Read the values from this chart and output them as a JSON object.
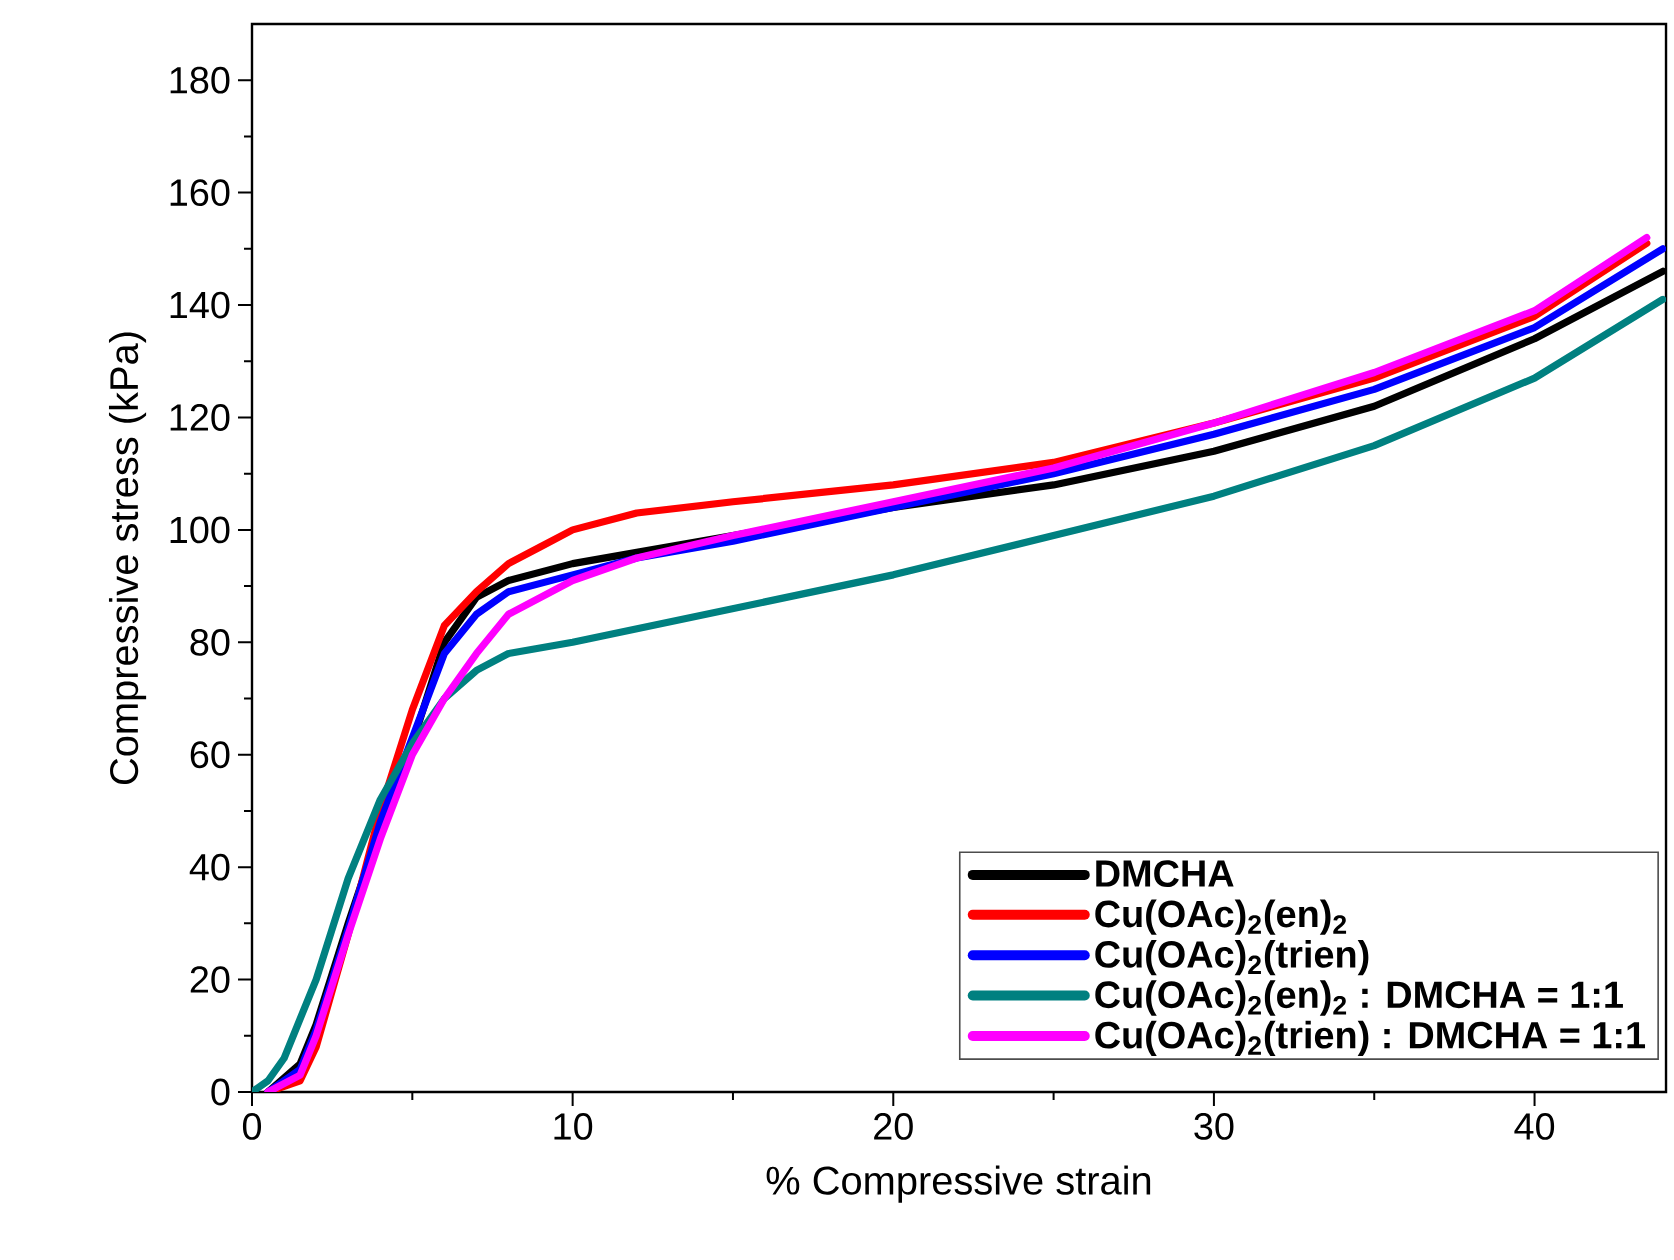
{
  "chart_data": {
    "type": "line",
    "xlabel": "% Compressive strain",
    "ylabel": "Compressive stress (kPa)",
    "xlim": [
      0,
      44.1
    ],
    "ylim": [
      0,
      190
    ],
    "xticks": [
      0,
      10,
      20,
      30,
      40
    ],
    "yticks": [
      0,
      20,
      40,
      60,
      80,
      100,
      120,
      140,
      160,
      180
    ],
    "grid": false,
    "legend": "bottom right",
    "marker": "none",
    "line_style": "solid",
    "series": [
      {
        "name": "DMCHA",
        "color": "#000000",
        "x": [
          0.5,
          1.5,
          2,
          3,
          4,
          5,
          6,
          7,
          8,
          10,
          12,
          15,
          20,
          25,
          30,
          35,
          40,
          44
        ],
        "values": [
          0,
          5,
          12,
          30,
          47,
          62,
          80,
          88,
          91,
          94,
          96,
          99,
          104,
          108,
          114,
          122,
          134,
          146
        ]
      },
      {
        "name": "Cu(OAc)$_{2}$(en)$_{2}$",
        "color": "#ff0000",
        "x": [
          0.5,
          1.5,
          2,
          3,
          4,
          5,
          6,
          7,
          8,
          9,
          10,
          12,
          15,
          20,
          25,
          30,
          35,
          40,
          43.5
        ],
        "values": [
          0,
          2,
          8,
          28,
          50,
          68,
          83,
          89,
          94,
          97,
          100,
          103,
          105,
          108,
          112,
          119,
          127,
          138,
          151
        ]
      },
      {
        "name": "Cu(OAc)$_{2}$(trien)",
        "color": "#0000ff",
        "x": [
          0.5,
          1.5,
          2,
          3,
          4,
          5,
          6,
          7,
          8,
          10,
          12,
          15,
          20,
          25,
          30,
          35,
          40,
          44
        ],
        "values": [
          0,
          4,
          11,
          29,
          48,
          63,
          78,
          85,
          89,
          92,
          95,
          98,
          104,
          110,
          117,
          125,
          136,
          150
        ]
      },
      {
        "name": "Cu(OAc)$_{2}$(en)$_{2}$ : DMCHA = 1:1",
        "color": "#008080",
        "x": [
          0,
          0.5,
          1,
          2,
          3,
          4,
          5,
          6,
          7,
          8,
          10,
          15,
          20,
          25,
          30,
          35,
          40,
          44
        ],
        "values": [
          0,
          2,
          6,
          20,
          38,
          52,
          62,
          70,
          75,
          78,
          80,
          86,
          92,
          99,
          106,
          115,
          127,
          141
        ]
      },
      {
        "name": "Cu(OAc)$_{2}$(trien) : DMCHA = 1:1",
        "color": "#ff00ff",
        "x": [
          0.5,
          1.5,
          2,
          3,
          4,
          5,
          6,
          7,
          8,
          10,
          12,
          15,
          20,
          25,
          30,
          35,
          40,
          43.5
        ],
        "values": [
          0,
          3,
          10,
          28,
          45,
          60,
          70,
          78,
          85,
          91,
          95,
          99,
          105,
          111,
          119,
          128,
          139,
          152
        ]
      }
    ]
  }
}
